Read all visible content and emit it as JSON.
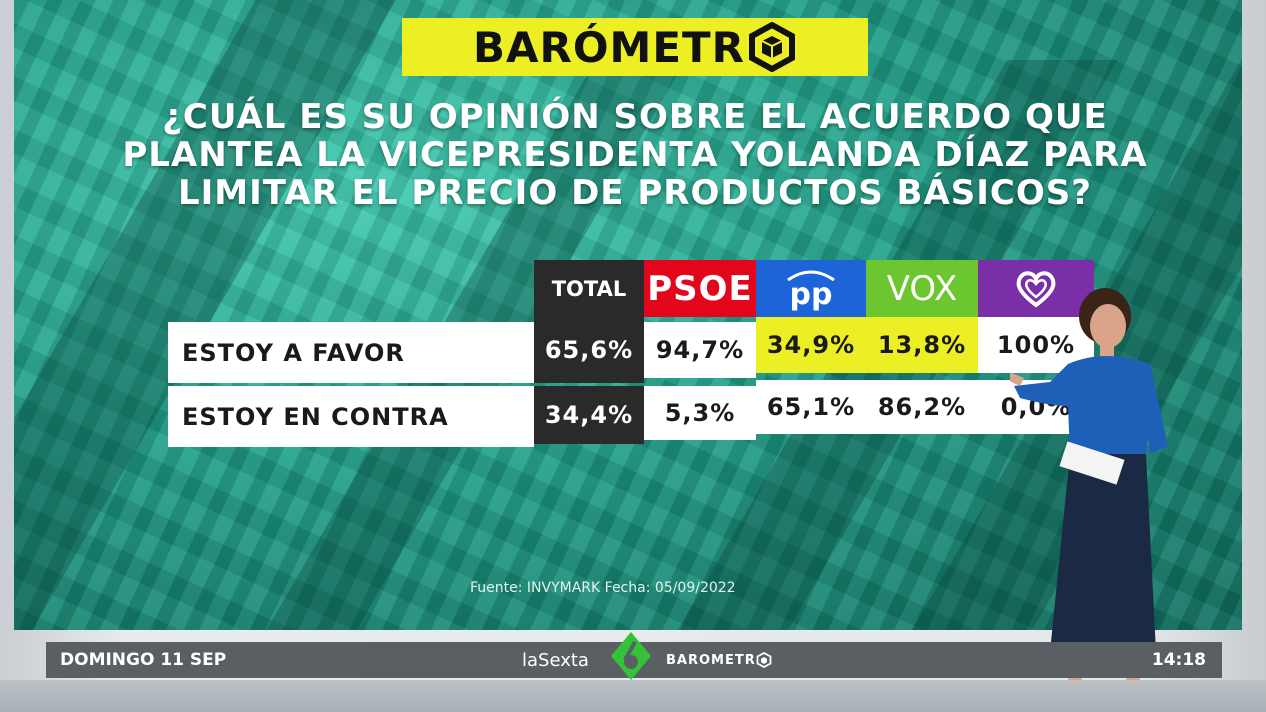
{
  "header": {
    "logo_text": "BARÓMETR"
  },
  "question": {
    "line1": "¿CUÁL ES SU OPINIÓN SOBRE EL ACUERDO QUE",
    "line2": "PLANTEA LA VICEPRESIDENTA YOLANDA DÍAZ PARA",
    "line3": "LIMITAR EL PRECIO DE PRODUCTOS BÁSICOS?"
  },
  "table": {
    "columns": [
      {
        "label": "TOTAL",
        "color": "#2a2a2a"
      },
      {
        "label": "PSOE",
        "color": "#e3051b"
      },
      {
        "label": "pp",
        "color": "#1d64d9",
        "icon": "pp-logo-icon"
      },
      {
        "label": "VOX",
        "color": "#6cc630"
      },
      {
        "label": "",
        "color": "#7a2ea8",
        "icon": "podemos-heart-icon"
      }
    ],
    "rows": [
      {
        "label": "ESTOY A FAVOR",
        "values": [
          "65,6%",
          "94,7%",
          "34,9%",
          "13,8%",
          "100%"
        ]
      },
      {
        "label": "ESTOY EN CONTRA",
        "values": [
          "34,4%",
          "5,3%",
          "65,1%",
          "86,2%",
          "0,0%"
        ]
      }
    ]
  },
  "source": "Fuente: INVYMARK Fecha: 05/09/2022",
  "ticker": {
    "date": "DOMINGO 11 SEP",
    "channel": "laSexta",
    "program": "BAROMETR",
    "time": "14:18"
  }
}
